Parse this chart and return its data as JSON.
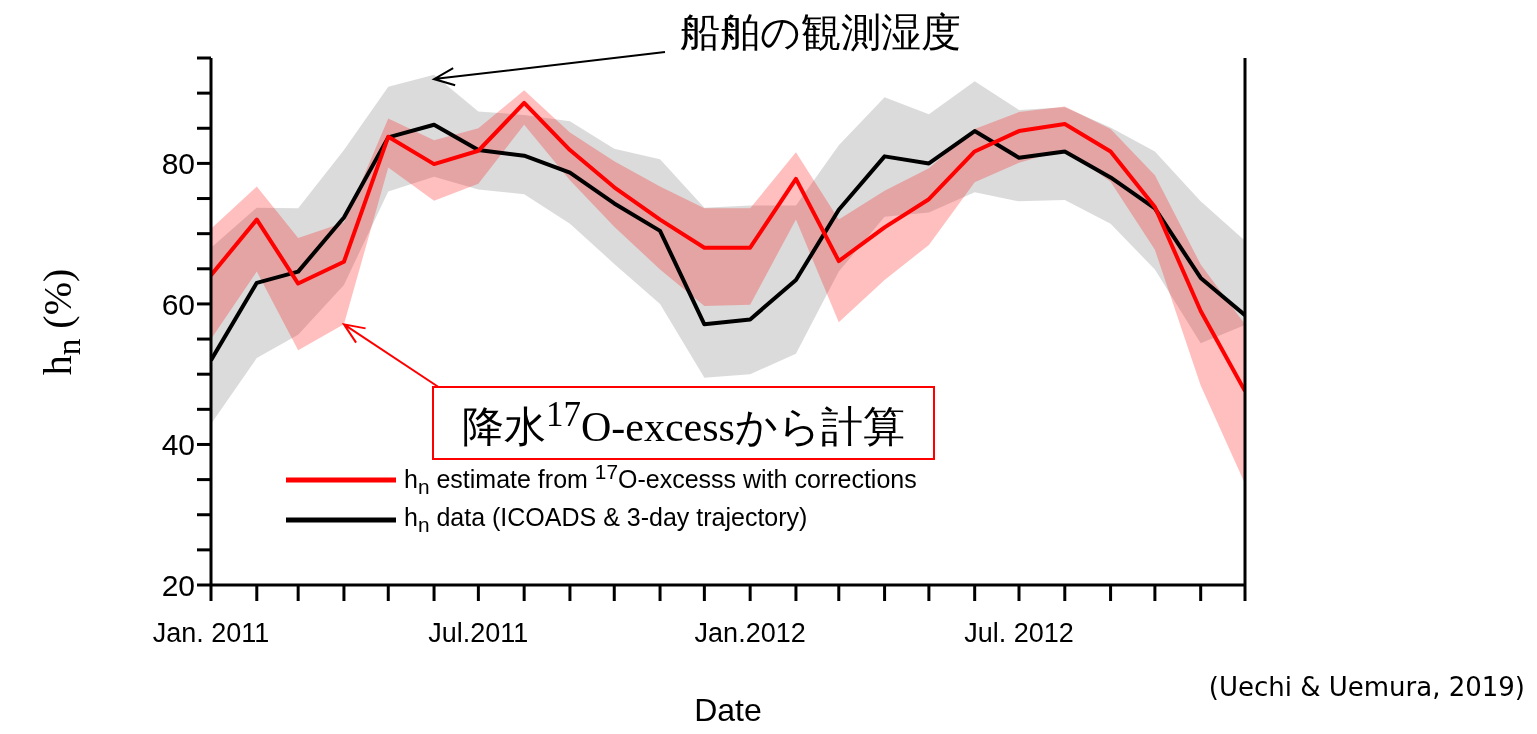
{
  "chart_data": {
    "type": "line",
    "xlabel": "Date",
    "ylabel": "h$_{n}$ (%)",
    "x": [
      "2011-01",
      "2011-02",
      "2011-03",
      "2011-04",
      "2011-05",
      "2011-06",
      "2011-07",
      "2011-08",
      "2011-09",
      "2011-10",
      "2011-11",
      "2011-12",
      "2012-01",
      "2012-02",
      "2012-03",
      "2012-04",
      "2012-05",
      "2012-06",
      "2012-07",
      "2012-08",
      "2012-09",
      "2012-10",
      "2012-11",
      "2012-12"
    ],
    "series": [
      {
        "name": "h$_{n}$ estimate from $^{17}$O-excesss with corrections",
        "color": "#ff0000",
        "values": [
          64.1,
          72,
          62.9,
          66,
          83.8,
          79.9,
          81.8,
          88.6,
          81.9,
          76.6,
          72,
          68,
          68,
          77.8,
          66.1,
          70.9,
          74.9,
          81.7,
          84.6,
          85.6,
          81.7,
          73.8,
          59,
          47.6
        ],
        "lower": [
          55,
          64.6,
          53.4,
          57.1,
          79.4,
          74.7,
          77.1,
          85.5,
          77.6,
          71,
          64.9,
          59.7,
          59.9,
          72,
          57.4,
          63.4,
          68.4,
          77.3,
          80.1,
          82,
          77.4,
          67.7,
          48.4,
          34.4
        ],
        "upper": [
          70.7,
          76.7,
          69.4,
          71.6,
          86.4,
          83.3,
          85,
          90.4,
          84.4,
          80.3,
          76.7,
          73.6,
          73.6,
          81.6,
          72,
          76.1,
          79.3,
          84.9,
          87.3,
          88.1,
          84.9,
          78.3,
          65.6,
          57.1
        ]
      },
      {
        "name": "h$_{n}$ data (ICOADS & 3-day trajectory)",
        "color": "#000000",
        "values": [
          52,
          63,
          64.6,
          72.3,
          83.7,
          85.5,
          81.9,
          81.1,
          78.7,
          74.3,
          70.4,
          57.1,
          57.8,
          63.4,
          73.4,
          81,
          80,
          84.6,
          80.8,
          81.7,
          78,
          73.6,
          63.7,
          58.4
        ],
        "lower": [
          42.9,
          52.3,
          55.6,
          62.7,
          76,
          78.1,
          76.3,
          75.6,
          71.4,
          65.7,
          60,
          49.5,
          50,
          52.9,
          64.6,
          72.4,
          73,
          75.9,
          74.6,
          74.8,
          71.4,
          64.9,
          54.4,
          57
        ],
        "upper": [
          68,
          73.7,
          73.6,
          81.9,
          90.9,
          92.6,
          87.4,
          86.9,
          86,
          82.1,
          80.6,
          73.7,
          74,
          74,
          82.6,
          89.4,
          87,
          91.7,
          87.6,
          88,
          85.1,
          81.7,
          74.6,
          69
        ]
      }
    ],
    "xlim": [
      "2011-01",
      "2012-12"
    ],
    "xticks": [
      {
        "value": "2011-01",
        "label": "Jan. 2011"
      },
      {
        "value": "2011-02",
        "label": null
      },
      {
        "value": "2011-03",
        "label": null
      },
      {
        "value": "2011-04",
        "label": null
      },
      {
        "value": "2011-05",
        "label": null
      },
      {
        "value": "2011-06",
        "label": null
      },
      {
        "value": "2011-07",
        "label": "Jul.2011"
      },
      {
        "value": "2011-08",
        "label": null
      },
      {
        "value": "2011-09",
        "label": null
      },
      {
        "value": "2011-10",
        "label": null
      },
      {
        "value": "2011-11",
        "label": null
      },
      {
        "value": "2011-12",
        "label": null
      },
      {
        "value": "2012-01",
        "label": "Jan.2012"
      },
      {
        "value": "2012-02",
        "label": null
      },
      {
        "value": "2012-03",
        "label": null
      },
      {
        "value": "2012-04",
        "label": null
      },
      {
        "value": "2012-05",
        "label": null
      },
      {
        "value": "2012-06",
        "label": null
      },
      {
        "value": "2012-07",
        "label": "Jul. 2012"
      },
      {
        "value": "2012-08",
        "label": null
      },
      {
        "value": "2012-09",
        "label": null
      },
      {
        "value": "2012-10",
        "label": null
      },
      {
        "value": "2012-11",
        "label": null
      },
      {
        "value": "2012-12",
        "label": null
      }
    ],
    "ylim": [
      20,
      95
    ],
    "yticks": [
      20,
      {
        "value": 25,
        "label": null
      },
      {
        "value": 30,
        "label": null
      },
      {
        "value": 35,
        "label": null
      },
      40,
      {
        "value": 45,
        "label": null
      },
      {
        "value": 50,
        "label": null
      },
      {
        "value": 55,
        "label": null
      },
      60,
      {
        "value": 65,
        "label": null
      },
      {
        "value": 70,
        "label": null
      },
      {
        "value": 75,
        "label": null
      },
      80,
      {
        "value": 85,
        "label": null
      },
      {
        "value": 90,
        "label": null
      },
      {
        "value": 95,
        "label": null
      }
    ],
    "marker": "none",
    "line_style": "solid",
    "legend": "bottom left",
    "annotations": [
      {
        "text": "船舶の観測湿度",
        "x": "2011-06",
        "y": 92
      },
      {
        "text": "降水$^{17}$O-excessから計算",
        "x": "2011-04",
        "y": 57.1
      },
      "(Uechi & Uemura, 2019)"
    ]
  }
}
